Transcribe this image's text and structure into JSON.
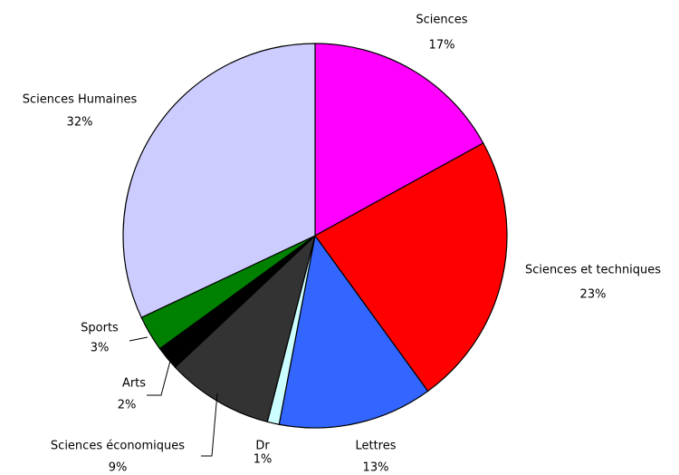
{
  "chart_data": {
    "type": "pie",
    "categories": [
      "Sciences",
      "Sciences et techniques",
      "Lettres",
      "Dr",
      "Sciences économiques",
      "Arts",
      "Sports",
      "Sciences Humaines"
    ],
    "values": [
      17,
      23,
      13,
      1,
      9,
      2,
      3,
      32
    ],
    "value_labels": [
      "17%",
      "23%",
      "13%",
      "1%",
      "9%",
      "2%",
      "3%",
      "32%"
    ],
    "colors": [
      "#ff00ff",
      "#ff0000",
      "#3366ff",
      "#ccffff",
      "#333333",
      "#000000",
      "#008000",
      "#ccccff"
    ]
  }
}
